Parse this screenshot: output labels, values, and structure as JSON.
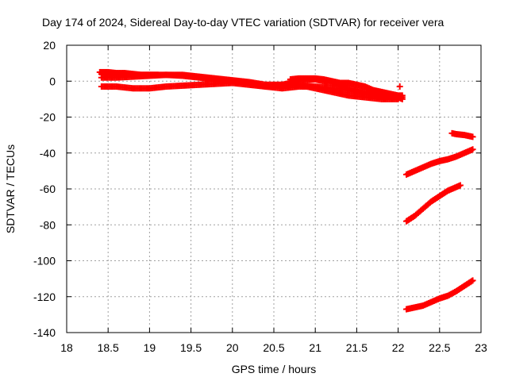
{
  "chart_data": {
    "type": "scatter",
    "title": "Day 174 of 2024, Sidereal Day-to-day VTEC variation (SDTVAR) for receiver vera",
    "xlabel": "GPS time / hours",
    "ylabel": "SDTVAR / TECUs",
    "xlim": [
      18,
      23
    ],
    "ylim": [
      -140,
      20
    ],
    "x_ticks": [
      18,
      18.5,
      19,
      19.5,
      20,
      20.5,
      21,
      21.5,
      22,
      22.5,
      23
    ],
    "x_tick_labels": [
      "18",
      "18.5",
      "19",
      "19.5",
      "20",
      "20.5",
      "21",
      "21.5",
      "22",
      "22.5",
      "23"
    ],
    "y_ticks": [
      20,
      0,
      -20,
      -40,
      -60,
      -80,
      -100,
      -120,
      -140
    ],
    "y_tick_labels": [
      "20",
      "0",
      "-20",
      "-40",
      "-60",
      "-80",
      "-100",
      "-120",
      "-140"
    ],
    "grid": true,
    "marker": "plus",
    "color": "#ff0000",
    "series": [
      {
        "x": [
          18.42,
          18.6,
          18.8,
          19.0,
          19.2,
          19.4,
          19.6,
          19.8,
          20.0,
          20.2,
          20.4,
          20.6,
          20.8,
          21.0,
          21.2,
          21.4,
          21.6,
          21.8,
          22.0,
          22.05
        ],
        "y": [
          4,
          4,
          3.5,
          3.5,
          3.5,
          3,
          2,
          1,
          0,
          -1,
          -3,
          -4,
          -3,
          -3,
          -4,
          -5,
          -7,
          -8,
          -9,
          -9
        ]
      },
      {
        "x": [
          18.42,
          18.6,
          18.8,
          19.0,
          19.2,
          19.4,
          19.6,
          19.8,
          20.0,
          20.2,
          20.4,
          20.6,
          20.8,
          21.0,
          21.2,
          21.4,
          21.6,
          21.8,
          22.0,
          22.05
        ],
        "y": [
          2,
          2,
          2.5,
          3,
          3.5,
          3.5,
          2.5,
          1.5,
          0.5,
          -0.5,
          -2,
          -2,
          0,
          1,
          -1,
          -4,
          -6,
          -8,
          -9,
          -10
        ]
      },
      {
        "x": [
          18.42,
          18.6,
          18.8,
          19.0,
          19.2,
          19.4,
          19.6,
          19.8,
          20.0,
          20.2,
          20.4,
          20.6,
          20.8,
          21.0,
          21.2,
          21.4,
          21.6,
          21.8,
          22.0
        ],
        "y": [
          -3,
          -3,
          -4,
          -4,
          -3,
          -2.5,
          -2,
          -1.5,
          -1,
          -2,
          -3,
          -2,
          -2,
          -4,
          -6,
          -8,
          -9,
          -10,
          -10
        ]
      },
      {
        "x": [
          20.7,
          20.8,
          20.9,
          21.0,
          21.1,
          21.2,
          21.3,
          21.4,
          21.5,
          21.6,
          21.7,
          21.8,
          21.9,
          22.0,
          22.05
        ],
        "y": [
          1,
          1.5,
          1.5,
          1.5,
          1,
          0,
          -1,
          -1,
          -2,
          -3,
          -5,
          -6,
          -7,
          -8,
          -8
        ]
      },
      {
        "x": [
          18.4,
          18.5,
          18.6,
          18.7,
          18.8,
          18.9,
          19.0,
          19.1
        ],
        "y": [
          5,
          5,
          4.5,
          4.5,
          4,
          3.5,
          3.5,
          3.5
        ]
      },
      {
        "x": [
          22.02
        ],
        "y": [
          -3
        ]
      },
      {
        "x": [
          22.1,
          22.2,
          22.3,
          22.4,
          22.5,
          22.6,
          22.7,
          22.8,
          22.9
        ],
        "y": [
          -52,
          -50,
          -48,
          -46,
          -44.5,
          -43.5,
          -42,
          -40,
          -38
        ]
      },
      {
        "x": [
          22.1,
          22.2,
          22.3,
          22.4,
          22.5,
          22.6,
          22.7,
          22.75
        ],
        "y": [
          -78,
          -75,
          -71,
          -67,
          -64,
          -61,
          -59,
          -58
        ]
      },
      {
        "x": [
          22.1,
          22.2,
          22.3,
          22.4,
          22.5,
          22.6,
          22.7,
          22.8,
          22.9
        ],
        "y": [
          -127,
          -126,
          -125,
          -123,
          -121,
          -119.5,
          -117,
          -114,
          -111
        ]
      },
      {
        "x": [
          22.65,
          22.7,
          22.8,
          22.9
        ],
        "y": [
          -29,
          -29.5,
          -30,
          -31
        ]
      }
    ]
  }
}
